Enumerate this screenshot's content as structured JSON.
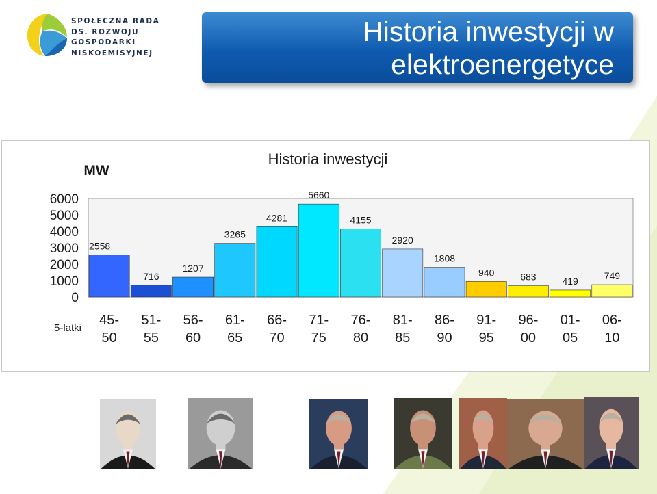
{
  "header": {
    "logo_lines": [
      "SPOŁECZNA RADA",
      "DS. ROZWOJU",
      "GOSPODARKI",
      "NISKOEMISYJNEJ"
    ],
    "title_line1": "Historia inwestycji w",
    "title_line2": "elektroenergetyce"
  },
  "colors": {
    "banner": "#0f5bb0",
    "accent_green": "#c9e08a"
  },
  "chart_data": {
    "type": "bar",
    "title": "Historia inwestycji",
    "ylabel": "MW",
    "xlabel": "5-latki",
    "ylim": [
      0,
      6000
    ],
    "yticks": [
      "6000",
      "5000",
      "4000",
      "3000",
      "2000",
      "1000",
      "0"
    ],
    "categories": [
      [
        "45-",
        "50"
      ],
      [
        "51-",
        "55"
      ],
      [
        "56-",
        "60"
      ],
      [
        "61-",
        "65"
      ],
      [
        "66-",
        "70"
      ],
      [
        "71-",
        "75"
      ],
      [
        "76-",
        "80"
      ],
      [
        "81-",
        "85"
      ],
      [
        "86-",
        "90"
      ],
      [
        "91-",
        "95"
      ],
      [
        "96-",
        "00"
      ],
      [
        "01-",
        "05"
      ],
      [
        "06-",
        "10"
      ]
    ],
    "values": [
      2558,
      716,
      1207,
      3265,
      4281,
      5660,
      4155,
      2920,
      1808,
      940,
      683,
      419,
      749
    ],
    "labels": [
      "2558",
      "716",
      "1207",
      "3265",
      "4281",
      "5660",
      "4155",
      "2920",
      "1808",
      "940",
      "683",
      "419",
      "749"
    ],
    "bar_colors": [
      "#3366ff",
      "#1a4fd6",
      "#1e90ff",
      "#1ec8ff",
      "#00d8ff",
      "#00e8ff",
      "#2be0f0",
      "#a8d4ff",
      "#99ccff",
      "#ffcc00",
      "#ffee00",
      "#ffff00",
      "#ffff66"
    ],
    "grid": false
  },
  "portraits": [
    {
      "name": "portrait-1",
      "skin": "#e8d8c8",
      "bg": "#d8d8d8",
      "suit": "#1a1a1a",
      "mono": true
    },
    {
      "name": "portrait-2",
      "skin": "#cfcfcf",
      "bg": "#9a9a9a",
      "suit": "#2a2a2a",
      "mono": true
    },
    {
      "name": "portrait-3",
      "skin": "#d79a82",
      "bg": "#2a3d5c",
      "suit": "#1a2030",
      "mono": false
    },
    {
      "name": "portrait-4",
      "skin": "#c99078",
      "bg": "#3a3a30",
      "suit": "#6b7a48",
      "mono": false
    },
    {
      "name": "portrait-5",
      "skin": "#d9a08a",
      "bg": "#a06048",
      "suit": "#202838",
      "mono": false
    },
    {
      "name": "portrait-6",
      "skin": "#d8a890",
      "bg": "#8c6a50",
      "suit": "#202020",
      "mono": false
    },
    {
      "name": "portrait-7",
      "skin": "#e6b8a0",
      "bg": "#5a5058",
      "suit": "#1c2440",
      "mono": false
    }
  ]
}
